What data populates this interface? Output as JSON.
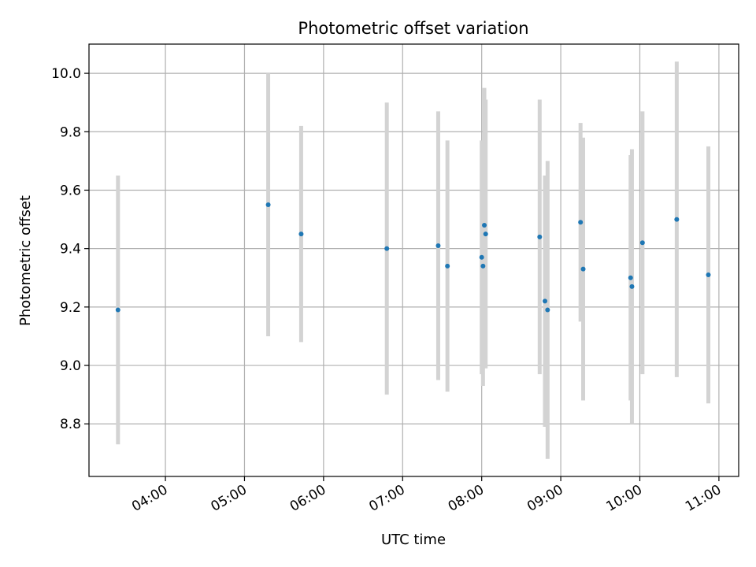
{
  "chart_data": {
    "type": "scatter",
    "title": "Photometric offset variation",
    "xlabel": "UTC time",
    "ylabel": "Photometric offset",
    "x_axis": {
      "kind": "time",
      "range": [
        "03:02",
        "11:15"
      ],
      "ticks": [
        "04:00",
        "05:00",
        "06:00",
        "07:00",
        "08:00",
        "09:00",
        "10:00",
        "11:00"
      ]
    },
    "y_axis": {
      "range": [
        8.62,
        10.1
      ],
      "ticks": [
        8.8,
        9.0,
        9.2,
        9.4,
        9.6,
        9.8,
        10.0
      ],
      "tick_labels": [
        "8.8",
        "9.0",
        "9.2",
        "9.4",
        "9.6",
        "9.8",
        "10.0"
      ]
    },
    "grid": true,
    "marker_color": "#1f77b4",
    "errorbar_color": "#d3d3d3",
    "series": [
      {
        "points": [
          {
            "time": "03:24",
            "y": 9.19,
            "err": 0.46
          },
          {
            "time": "05:18",
            "y": 9.55,
            "err": 0.45
          },
          {
            "time": "05:43",
            "y": 9.45,
            "err": 0.37
          },
          {
            "time": "06:48",
            "y": 9.4,
            "err": 0.5
          },
          {
            "time": "07:27",
            "y": 9.41,
            "err": 0.46
          },
          {
            "time": "07:34",
            "y": 9.34,
            "err": 0.43
          },
          {
            "time": "08:00",
            "y": 9.37,
            "err": 0.4
          },
          {
            "time": "08:01",
            "y": 9.34,
            "err": 0.41
          },
          {
            "time": "08:02",
            "y": 9.48,
            "err": 0.47
          },
          {
            "time": "08:03",
            "y": 9.45,
            "err": 0.46
          },
          {
            "time": "08:44",
            "y": 9.44,
            "err": 0.47
          },
          {
            "time": "08:48",
            "y": 9.22,
            "err": 0.43
          },
          {
            "time": "08:50",
            "y": 9.19,
            "err": 0.51
          },
          {
            "time": "09:15",
            "y": 9.49,
            "err": 0.34
          },
          {
            "time": "09:17",
            "y": 9.33,
            "err": 0.45
          },
          {
            "time": "09:53",
            "y": 9.3,
            "err": 0.42
          },
          {
            "time": "09:54",
            "y": 9.27,
            "err": 0.47
          },
          {
            "time": "10:02",
            "y": 9.42,
            "err": 0.45
          },
          {
            "time": "10:28",
            "y": 9.5,
            "err": 0.54
          },
          {
            "time": "10:52",
            "y": 9.31,
            "err": 0.44
          }
        ]
      }
    ]
  }
}
